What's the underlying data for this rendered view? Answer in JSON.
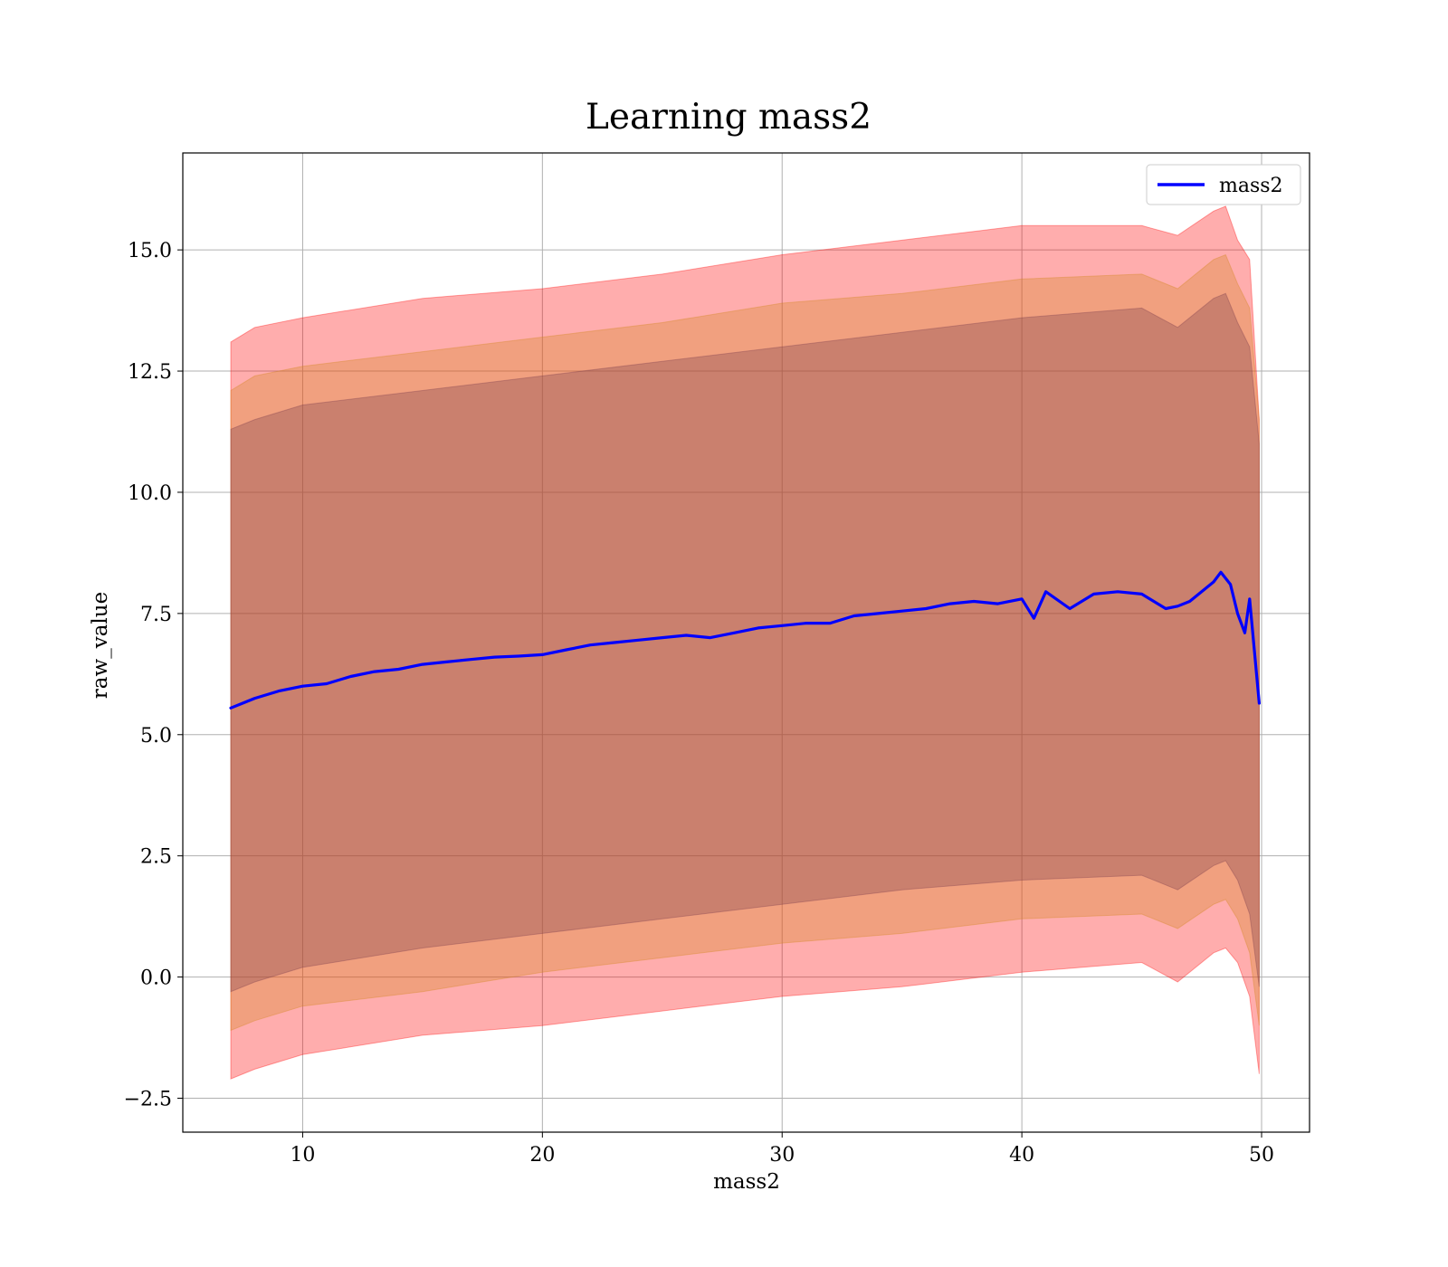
{
  "chart_data": {
    "type": "line",
    "title": "Learning mass2",
    "xlabel": "mass2",
    "ylabel": "raw_value",
    "xlim": [
      5,
      52
    ],
    "ylim": [
      -3.2,
      17.0
    ],
    "xticks": [
      10,
      20,
      30,
      40,
      50
    ],
    "yticks": [
      -2.5,
      0.0,
      2.5,
      5.0,
      7.5,
      10.0,
      12.5,
      15.0
    ],
    "ytick_labels": [
      "−2.5",
      "0.0",
      "2.5",
      "5.0",
      "7.5",
      "10.0",
      "12.5",
      "15.0"
    ],
    "grid": true,
    "legend": {
      "position": "top-right",
      "entries": [
        "mass2"
      ]
    },
    "series": [
      {
        "name": "mass2",
        "color": "#0000ff",
        "x": [
          7.0,
          7.5,
          8.0,
          9.0,
          10.0,
          11.0,
          12.0,
          13.0,
          14.0,
          15.0,
          16.0,
          17.0,
          18.0,
          19.0,
          20.0,
          21.0,
          22.0,
          23.0,
          24.0,
          25.0,
          26.0,
          27.0,
          28.0,
          29.0,
          30.0,
          31.0,
          32.0,
          33.0,
          34.0,
          35.0,
          36.0,
          37.0,
          38.0,
          39.0,
          40.0,
          40.5,
          41.0,
          42.0,
          43.0,
          44.0,
          45.0,
          46.0,
          46.5,
          47.0,
          48.0,
          48.3,
          48.7,
          49.0,
          49.3,
          49.5,
          49.9
        ],
        "y": [
          5.55,
          5.65,
          5.75,
          5.9,
          6.0,
          6.05,
          6.2,
          6.3,
          6.35,
          6.45,
          6.5,
          6.55,
          6.6,
          6.62,
          6.65,
          6.75,
          6.85,
          6.9,
          6.95,
          7.0,
          7.05,
          7.0,
          7.1,
          7.2,
          7.25,
          7.3,
          7.3,
          7.45,
          7.5,
          7.55,
          7.6,
          7.7,
          7.75,
          7.7,
          7.8,
          7.4,
          7.95,
          7.6,
          7.9,
          7.95,
          7.9,
          7.6,
          7.65,
          7.75,
          8.15,
          8.35,
          8.1,
          7.5,
          7.1,
          7.8,
          5.65
        ]
      }
    ],
    "bands": [
      {
        "color": "#ff0000",
        "x": [
          7.0,
          8.0,
          10.0,
          15.0,
          20.0,
          25.0,
          30.0,
          35.0,
          40.0,
          45.0,
          46.5,
          48.0,
          48.5,
          49.0,
          49.5,
          49.9
        ],
        "upper": [
          13.1,
          13.4,
          13.6,
          14.0,
          14.2,
          14.5,
          14.9,
          15.2,
          15.5,
          15.5,
          15.3,
          15.8,
          15.9,
          15.2,
          14.8,
          11.5
        ],
        "lower": [
          -2.1,
          -1.9,
          -1.6,
          -1.2,
          -1.0,
          -0.7,
          -0.4,
          -0.2,
          0.1,
          0.3,
          -0.1,
          0.5,
          0.6,
          0.3,
          -0.4,
          -2.0
        ]
      },
      {
        "color": "#d2861e",
        "x": [
          7.0,
          8.0,
          10.0,
          15.0,
          20.0,
          25.0,
          30.0,
          35.0,
          40.0,
          45.0,
          46.5,
          48.0,
          48.5,
          49.0,
          49.5,
          49.9
        ],
        "upper": [
          12.1,
          12.4,
          12.6,
          12.9,
          13.2,
          13.5,
          13.9,
          14.1,
          14.4,
          14.5,
          14.2,
          14.8,
          14.9,
          14.3,
          13.8,
          11.5
        ],
        "lower": [
          -1.1,
          -0.9,
          -0.6,
          -0.3,
          0.1,
          0.4,
          0.7,
          0.9,
          1.2,
          1.3,
          1.0,
          1.5,
          1.6,
          1.2,
          0.5,
          -1.0
        ]
      },
      {
        "color": "#7a3d4c",
        "x": [
          7.0,
          8.0,
          10.0,
          15.0,
          20.0,
          25.0,
          30.0,
          35.0,
          40.0,
          45.0,
          46.5,
          48.0,
          48.5,
          49.0,
          49.5,
          49.9
        ],
        "upper": [
          11.3,
          11.5,
          11.8,
          12.1,
          12.4,
          12.7,
          13.0,
          13.3,
          13.6,
          13.8,
          13.4,
          14.0,
          14.1,
          13.5,
          13.0,
          11.0
        ],
        "lower": [
          -0.3,
          -0.1,
          0.2,
          0.6,
          0.9,
          1.2,
          1.5,
          1.8,
          2.0,
          2.1,
          1.8,
          2.3,
          2.4,
          2.0,
          1.3,
          -0.2
        ]
      }
    ]
  }
}
